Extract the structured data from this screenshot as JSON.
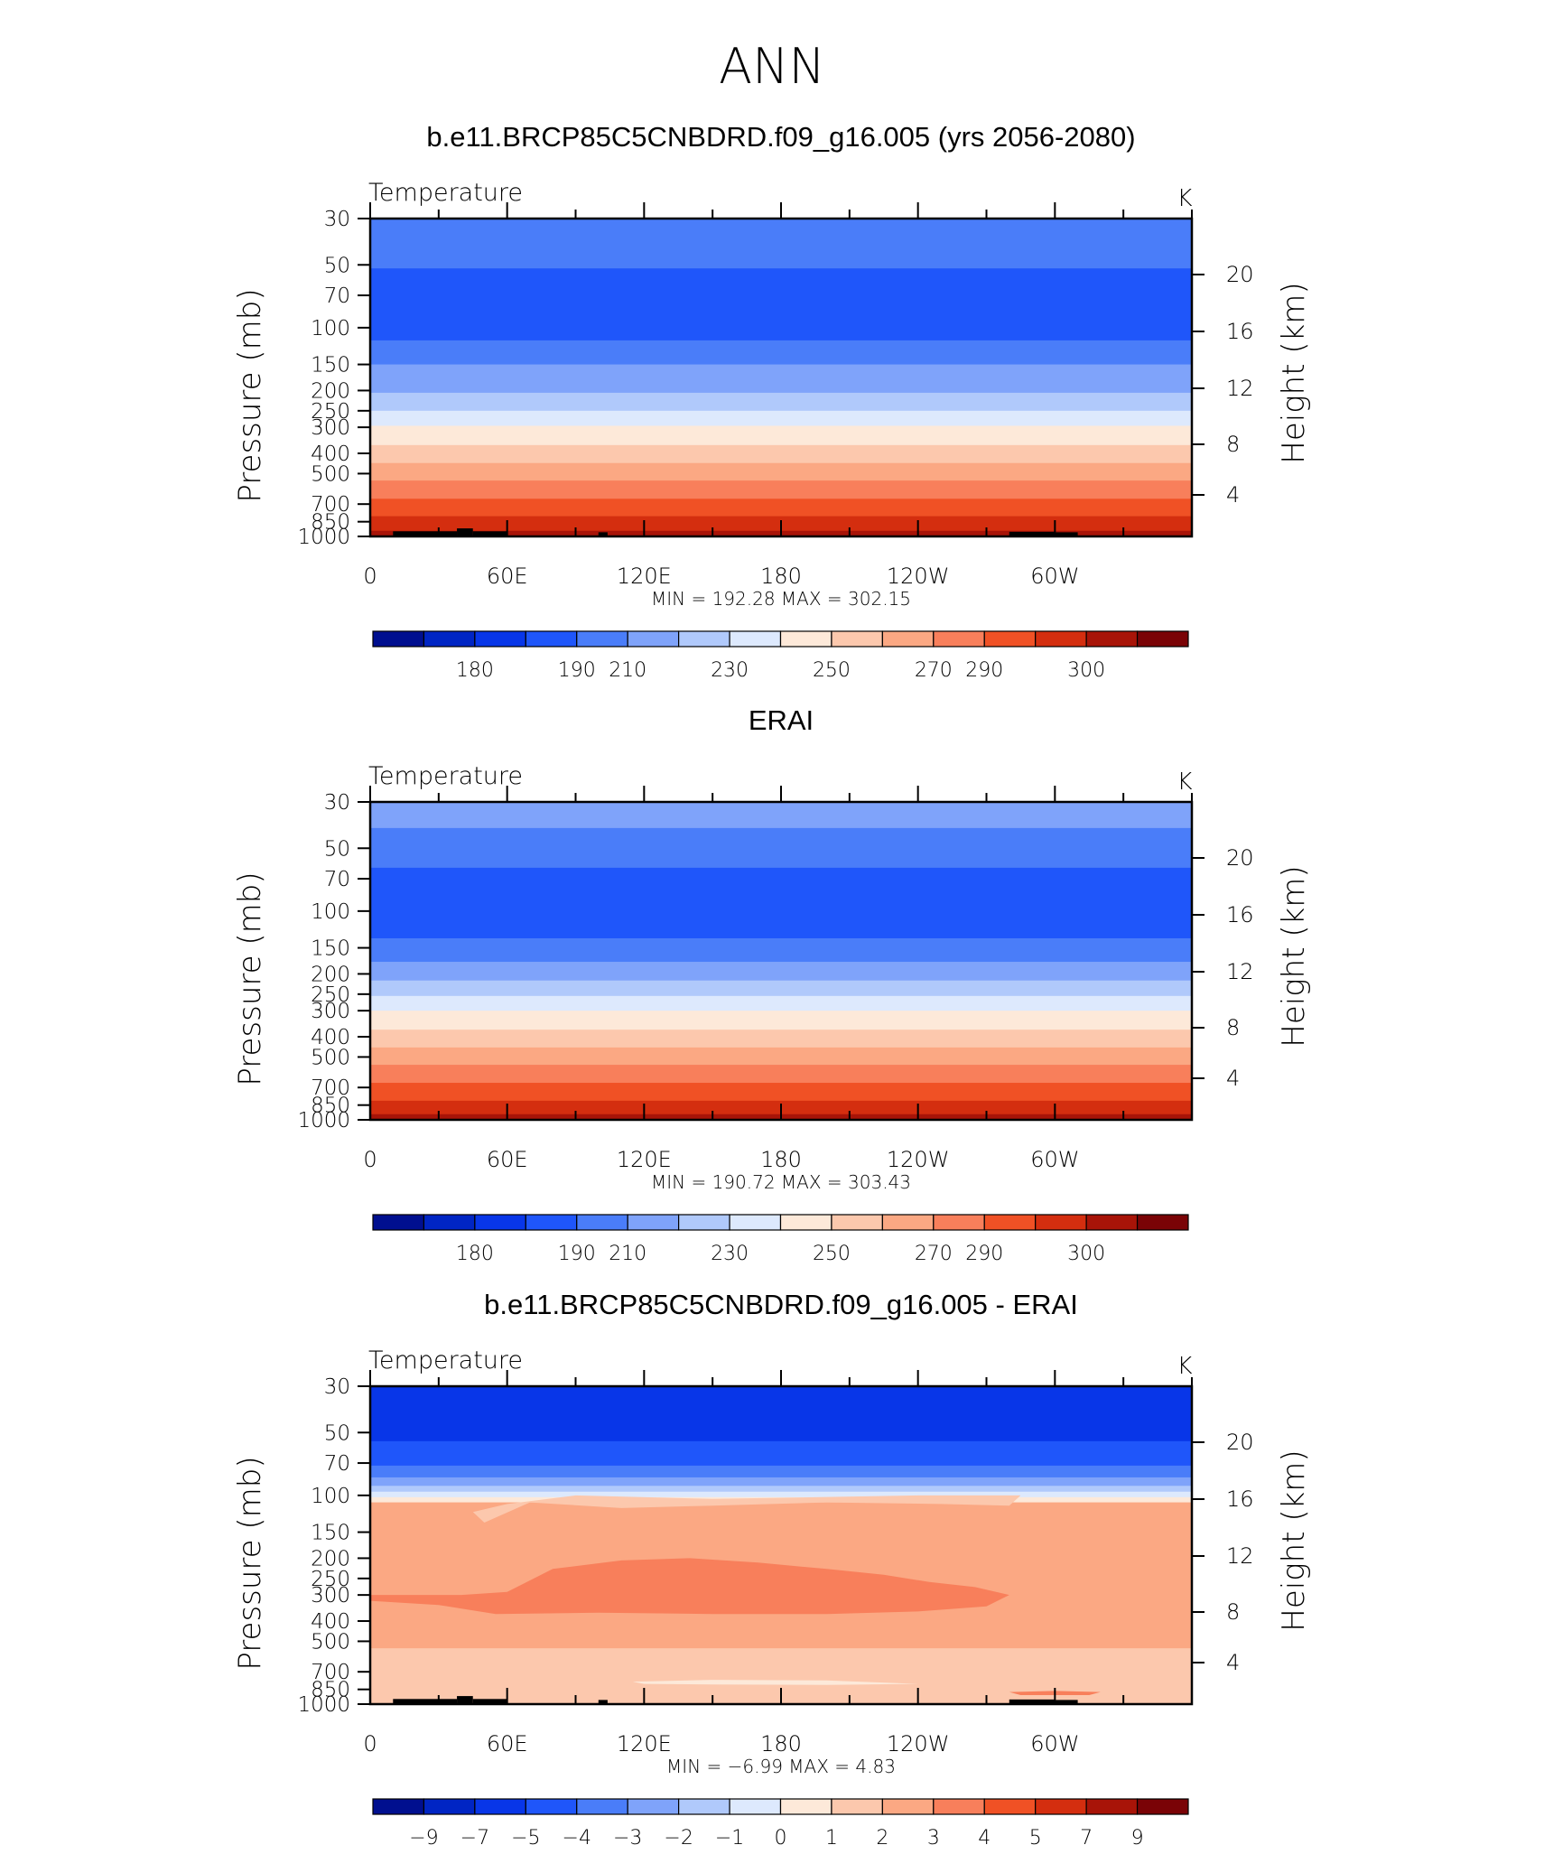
{
  "figure_title": "ANN",
  "chart_data": [
    {
      "type": "heatmap",
      "title": "b.e11.BRCP85C5CNBDRD.f09_g16.005 (yrs 2056-2080)",
      "variable": "Temperature",
      "units": "K",
      "ylabel": "Pressure (mb)",
      "y2label": "Height (km)",
      "x_ticks": [
        "0",
        "60E",
        "120E",
        "180",
        "120W",
        "60W"
      ],
      "x_range": [
        0,
        360
      ],
      "y_ticks": [
        "30",
        "50",
        "70",
        "100",
        "150",
        "200",
        "250",
        "300",
        "400",
        "500",
        "700",
        "850",
        "1000"
      ],
      "y_range_mb": [
        30,
        1000
      ],
      "y_log_scale": true,
      "y2_ticks": [
        "4",
        "8",
        "12",
        "16",
        "20"
      ],
      "stats": "MIN = 192.28   MAX = 302.15",
      "min": 192.28,
      "max": 302.15,
      "colorbar_labels": [
        "180",
        "190",
        "210",
        "230",
        "250",
        "270",
        "290",
        "300"
      ],
      "colorbar_colors": [
        "#000f8f",
        "#0025c4",
        "#0836e8",
        "#1f56fa",
        "#4a7df9",
        "#7fa3fa",
        "#b0c9fb",
        "#dde9fd",
        "#fde9d9",
        "#fcc8ad",
        "#fba883",
        "#f87f5b",
        "#f05125",
        "#d42e0f",
        "#a81408",
        "#7a0306"
      ],
      "bands": [
        {
          "p": [
            30,
            52
          ],
          "value": "200-210",
          "color": "#4a7df9"
        },
        {
          "p": [
            52,
            115
          ],
          "value": "190-200",
          "color": "#1f56fa"
        },
        {
          "p": [
            115,
            150
          ],
          "value": "200-210",
          "color": "#4a7df9"
        },
        {
          "p": [
            150,
            205
          ],
          "value": "210-220",
          "color": "#7fa3fa"
        },
        {
          "p": [
            205,
            250
          ],
          "value": "220-230",
          "color": "#b0c9fb"
        },
        {
          "p": [
            250,
            295
          ],
          "value": "230-240",
          "color": "#dde9fd"
        },
        {
          "p": [
            295,
            365
          ],
          "value": "240-250",
          "color": "#fde9d9"
        },
        {
          "p": [
            365,
            445
          ],
          "value": "250-260",
          "color": "#fcc8ad"
        },
        {
          "p": [
            445,
            540
          ],
          "value": "260-270",
          "color": "#fba883"
        },
        {
          "p": [
            540,
            660
          ],
          "value": "270-280",
          "color": "#f87f5b"
        },
        {
          "p": [
            660,
            800
          ],
          "value": "280-290",
          "color": "#f05125"
        },
        {
          "p": [
            800,
            940
          ],
          "value": "290-295",
          "color": "#d42e0f"
        },
        {
          "p": [
            940,
            1000
          ],
          "value": "295-300",
          "color": "#a81408"
        }
      ],
      "terrain": true
    },
    {
      "type": "heatmap",
      "title": "ERAI",
      "variable": "Temperature",
      "units": "K",
      "ylabel": "Pressure (mb)",
      "y2label": "Height (km)",
      "x_ticks": [
        "0",
        "60E",
        "120E",
        "180",
        "120W",
        "60W"
      ],
      "x_range": [
        0,
        360
      ],
      "y_ticks": [
        "30",
        "50",
        "70",
        "100",
        "150",
        "200",
        "250",
        "300",
        "400",
        "500",
        "700",
        "850",
        "1000"
      ],
      "y_range_mb": [
        30,
        1000
      ],
      "y_log_scale": true,
      "y2_ticks": [
        "4",
        "8",
        "12",
        "16",
        "20"
      ],
      "stats": "MIN = 190.72   MAX = 303.43",
      "min": 190.72,
      "max": 303.43,
      "colorbar_labels": [
        "180",
        "190",
        "210",
        "230",
        "250",
        "270",
        "290",
        "300"
      ],
      "colorbar_colors": [
        "#000f8f",
        "#0025c4",
        "#0836e8",
        "#1f56fa",
        "#4a7df9",
        "#7fa3fa",
        "#b0c9fb",
        "#dde9fd",
        "#fde9d9",
        "#fcc8ad",
        "#fba883",
        "#f87f5b",
        "#f05125",
        "#d42e0f",
        "#a81408",
        "#7a0306"
      ],
      "bands": [
        {
          "p": [
            30,
            40
          ],
          "value": "210-220",
          "color": "#7fa3fa"
        },
        {
          "p": [
            40,
            62
          ],
          "value": "200-210",
          "color": "#4a7df9"
        },
        {
          "p": [
            62,
            135
          ],
          "value": "190-200",
          "color": "#1f56fa"
        },
        {
          "p": [
            135,
            175
          ],
          "value": "200-210",
          "color": "#4a7df9"
        },
        {
          "p": [
            175,
            215
          ],
          "value": "210-220",
          "color": "#7fa3fa"
        },
        {
          "p": [
            215,
            255
          ],
          "value": "220-230",
          "color": "#b0c9fb"
        },
        {
          "p": [
            255,
            300
          ],
          "value": "230-240",
          "color": "#dde9fd"
        },
        {
          "p": [
            300,
            370
          ],
          "value": "240-250",
          "color": "#fde9d9"
        },
        {
          "p": [
            370,
            450
          ],
          "value": "250-260",
          "color": "#fcc8ad"
        },
        {
          "p": [
            450,
            545
          ],
          "value": "260-270",
          "color": "#fba883"
        },
        {
          "p": [
            545,
            665
          ],
          "value": "270-280",
          "color": "#f87f5b"
        },
        {
          "p": [
            665,
            810
          ],
          "value": "280-290",
          "color": "#f05125"
        },
        {
          "p": [
            810,
            940
          ],
          "value": "290-295",
          "color": "#d42e0f"
        },
        {
          "p": [
            940,
            1000
          ],
          "value": "295-300",
          "color": "#a81408"
        }
      ],
      "terrain": false
    },
    {
      "type": "heatmap",
      "title": "b.e11.BRCP85C5CNBDRD.f09_g16.005 - ERAI",
      "variable": "Temperature",
      "units": "K",
      "ylabel": "Pressure (mb)",
      "y2label": "Height (km)",
      "x_ticks": [
        "0",
        "60E",
        "120E",
        "180",
        "120W",
        "60W"
      ],
      "x_range": [
        0,
        360
      ],
      "y_ticks": [
        "30",
        "50",
        "70",
        "100",
        "150",
        "200",
        "250",
        "300",
        "400",
        "500",
        "700",
        "850",
        "1000"
      ],
      "y_range_mb": [
        30,
        1000
      ],
      "y_log_scale": true,
      "y2_ticks": [
        "4",
        "8",
        "12",
        "16",
        "20"
      ],
      "stats": "MIN =    −6.99   MAX =     4.83",
      "min": -6.99,
      "max": 4.83,
      "colorbar_labels": [
        "−9",
        "−7",
        "−5",
        "−4",
        "−3",
        "−2",
        "−1",
        "0",
        "1",
        "2",
        "3",
        "4",
        "5",
        "7",
        "9"
      ],
      "colorbar_colors": [
        "#000f8f",
        "#0025c4",
        "#0836e8",
        "#1f56fa",
        "#4a7df9",
        "#7fa3fa",
        "#b0c9fb",
        "#dde9fd",
        "#fde9d9",
        "#fcc8ad",
        "#fba883",
        "#f87f5b",
        "#f05125",
        "#d42e0f",
        "#a81408",
        "#7a0306"
      ],
      "bands": [
        {
          "p": [
            30,
            55
          ],
          "value": "-7 to -5",
          "color": "#0836e8"
        },
        {
          "p": [
            55,
            72
          ],
          "value": "-5 to -4",
          "color": "#1f56fa"
        },
        {
          "p": [
            72,
            82
          ],
          "value": "-4 to -3",
          "color": "#4a7df9"
        },
        {
          "p": [
            82,
            90
          ],
          "value": "-3 to -2",
          "color": "#7fa3fa"
        },
        {
          "p": [
            90,
            96
          ],
          "value": "-2 to -1",
          "color": "#b0c9fb"
        },
        {
          "p": [
            96,
            102
          ],
          "value": "-1 to 0",
          "color": "#dde9fd"
        },
        {
          "p": [
            102,
            108
          ],
          "value": "0 to 1",
          "color": "#fde9d9"
        },
        {
          "p": [
            108,
            540
          ],
          "value": "2 to 3",
          "color": "#fba883"
        },
        {
          "p": [
            540,
            1000
          ],
          "value": "1 to 2",
          "color": "#fcc8ad"
        }
      ],
      "blobs": [
        {
          "value": "3 to 4",
          "color": "#f87f5b",
          "pts": [
            [
              0,
              300
            ],
            [
              40,
              300
            ],
            [
              60,
              290
            ],
            [
              80,
              225
            ],
            [
              110,
              205
            ],
            [
              140,
              200
            ],
            [
              170,
              210
            ],
            [
              200,
              225
            ],
            [
              225,
              240
            ],
            [
              245,
              260
            ],
            [
              265,
              275
            ],
            [
              280,
              300
            ],
            [
              270,
              340
            ],
            [
              240,
              360
            ],
            [
              200,
              370
            ],
            [
              150,
              370
            ],
            [
              100,
              365
            ],
            [
              55,
              370
            ],
            [
              30,
              335
            ],
            [
              0,
              320
            ]
          ]
        },
        {
          "value": "1 to 2",
          "color": "#fcc8ad",
          "pts": [
            [
              50,
              135
            ],
            [
              70,
              108
            ],
            [
              110,
              115
            ],
            [
              150,
              112
            ],
            [
              200,
              108
            ],
            [
              250,
              110
            ],
            [
              280,
              112
            ],
            [
              285,
              100
            ],
            [
              240,
              100
            ],
            [
              150,
              104
            ],
            [
              90,
              100
            ],
            [
              60,
              110
            ],
            [
              45,
              120
            ]
          ]
        },
        {
          "value": "0 to 1",
          "color": "#fde9d9",
          "pts": [
            [
              115,
              780
            ],
            [
              150,
              765
            ],
            [
              200,
              770
            ],
            [
              240,
              800
            ],
            [
              200,
              810
            ],
            [
              150,
              805
            ],
            [
              120,
              800
            ]
          ]
        },
        {
          "value": "3 to 4",
          "color": "#f87f5b",
          "pts": [
            [
              280,
              875
            ],
            [
              300,
              865
            ],
            [
              320,
              875
            ],
            [
              315,
              905
            ],
            [
              285,
              905
            ]
          ]
        }
      ],
      "terrain": true
    }
  ]
}
